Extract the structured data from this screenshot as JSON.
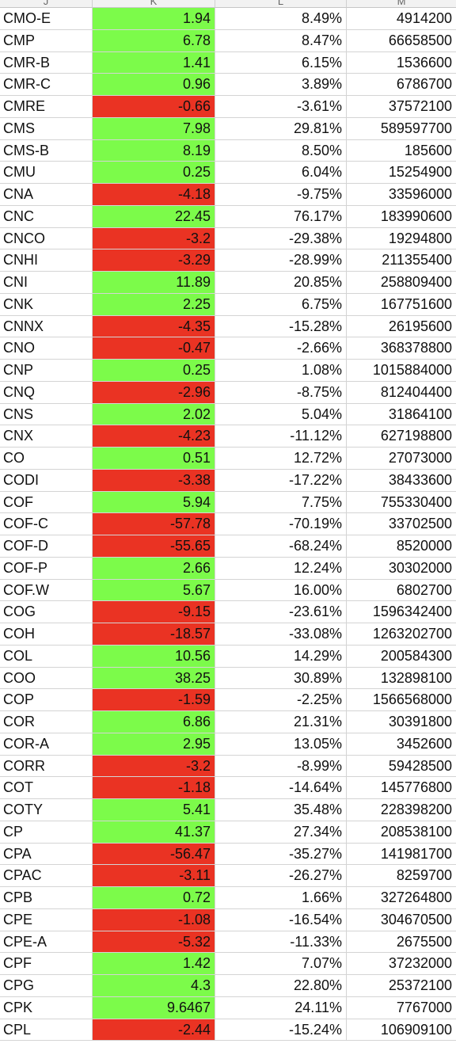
{
  "columns": [
    "J",
    "K",
    "L",
    "M"
  ],
  "colors": {
    "positive_fill": "#7cfb4a",
    "negative_fill": "#ea3323"
  },
  "rows": [
    {
      "symbol": "CMO-E",
      "k": "1.94",
      "l": "8.49%",
      "m": "4914200",
      "k_sign": "pos"
    },
    {
      "symbol": "CMP",
      "k": "6.78",
      "l": "8.47%",
      "m": "66658500",
      "k_sign": "pos"
    },
    {
      "symbol": "CMR-B",
      "k": "1.41",
      "l": "6.15%",
      "m": "1536600",
      "k_sign": "pos"
    },
    {
      "symbol": "CMR-C",
      "k": "0.96",
      "l": "3.89%",
      "m": "6786700",
      "k_sign": "pos"
    },
    {
      "symbol": "CMRE",
      "k": "-0.66",
      "l": "-3.61%",
      "m": "37572100",
      "k_sign": "neg"
    },
    {
      "symbol": "CMS",
      "k": "7.98",
      "l": "29.81%",
      "m": "589597700",
      "k_sign": "pos"
    },
    {
      "symbol": "CMS-B",
      "k": "8.19",
      "l": "8.50%",
      "m": "185600",
      "k_sign": "pos"
    },
    {
      "symbol": "CMU",
      "k": "0.25",
      "l": "6.04%",
      "m": "15254900",
      "k_sign": "pos"
    },
    {
      "symbol": "CNA",
      "k": "-4.18",
      "l": "-9.75%",
      "m": "33596000",
      "k_sign": "neg"
    },
    {
      "symbol": "CNC",
      "k": "22.45",
      "l": "76.17%",
      "m": "183990600",
      "k_sign": "pos"
    },
    {
      "symbol": "CNCO",
      "k": "-3.2",
      "l": "-29.38%",
      "m": "19294800",
      "k_sign": "neg"
    },
    {
      "symbol": "CNHI",
      "k": "-3.29",
      "l": "-28.99%",
      "m": "211355400",
      "k_sign": "neg"
    },
    {
      "symbol": "CNI",
      "k": "11.89",
      "l": "20.85%",
      "m": "258809400",
      "k_sign": "pos"
    },
    {
      "symbol": "CNK",
      "k": "2.25",
      "l": "6.75%",
      "m": "167751600",
      "k_sign": "pos"
    },
    {
      "symbol": "CNNX",
      "k": "-4.35",
      "l": "-15.28%",
      "m": "26195600",
      "k_sign": "neg"
    },
    {
      "symbol": "CNO",
      "k": "-0.47",
      "l": "-2.66%",
      "m": "368378800",
      "k_sign": "neg"
    },
    {
      "symbol": "CNP",
      "k": "0.25",
      "l": "1.08%",
      "m": "1015884000",
      "k_sign": "pos"
    },
    {
      "symbol": "CNQ",
      "k": "-2.96",
      "l": "-8.75%",
      "m": "812404400",
      "k_sign": "neg"
    },
    {
      "symbol": "CNS",
      "k": "2.02",
      "l": "5.04%",
      "m": "31864100",
      "k_sign": "pos"
    },
    {
      "symbol": "CNX",
      "k": "-4.23",
      "l": "-11.12%",
      "m": "627198800",
      "k_sign": "neg"
    },
    {
      "symbol": "CO",
      "k": "0.51",
      "l": "12.72%",
      "m": "27073000",
      "k_sign": "pos"
    },
    {
      "symbol": "CODI",
      "k": "-3.38",
      "l": "-17.22%",
      "m": "38433600",
      "k_sign": "neg"
    },
    {
      "symbol": "COF",
      "k": "5.94",
      "l": "7.75%",
      "m": "755330400",
      "k_sign": "pos"
    },
    {
      "symbol": "COF-C",
      "k": "-57.78",
      "l": "-70.19%",
      "m": "33702500",
      "k_sign": "neg"
    },
    {
      "symbol": "COF-D",
      "k": "-55.65",
      "l": "-68.24%",
      "m": "8520000",
      "k_sign": "neg"
    },
    {
      "symbol": "COF-P",
      "k": "2.66",
      "l": "12.24%",
      "m": "30302000",
      "k_sign": "pos"
    },
    {
      "symbol": "COF.W",
      "k": "5.67",
      "l": "16.00%",
      "m": "6802700",
      "k_sign": "pos"
    },
    {
      "symbol": "COG",
      "k": "-9.15",
      "l": "-23.61%",
      "m": "1596342400",
      "k_sign": "neg"
    },
    {
      "symbol": "COH",
      "k": "-18.57",
      "l": "-33.08%",
      "m": "1263202700",
      "k_sign": "neg"
    },
    {
      "symbol": "COL",
      "k": "10.56",
      "l": "14.29%",
      "m": "200584300",
      "k_sign": "pos"
    },
    {
      "symbol": "COO",
      "k": "38.25",
      "l": "30.89%",
      "m": "132898100",
      "k_sign": "pos"
    },
    {
      "symbol": "COP",
      "k": "-1.59",
      "l": "-2.25%",
      "m": "1566568000",
      "k_sign": "neg"
    },
    {
      "symbol": "COR",
      "k": "6.86",
      "l": "21.31%",
      "m": "30391800",
      "k_sign": "pos"
    },
    {
      "symbol": "COR-A",
      "k": "2.95",
      "l": "13.05%",
      "m": "3452600",
      "k_sign": "pos"
    },
    {
      "symbol": "CORR",
      "k": "-3.2",
      "l": "-8.99%",
      "m": "59428500",
      "k_sign": "neg"
    },
    {
      "symbol": "COT",
      "k": "-1.18",
      "l": "-14.64%",
      "m": "145776800",
      "k_sign": "neg"
    },
    {
      "symbol": "COTY",
      "k": "5.41",
      "l": "35.48%",
      "m": "228398200",
      "k_sign": "pos"
    },
    {
      "symbol": "CP",
      "k": "41.37",
      "l": "27.34%",
      "m": "208538100",
      "k_sign": "pos"
    },
    {
      "symbol": "CPA",
      "k": "-56.47",
      "l": "-35.27%",
      "m": "141981700",
      "k_sign": "neg"
    },
    {
      "symbol": "CPAC",
      "k": "-3.11",
      "l": "-26.27%",
      "m": "8259700",
      "k_sign": "neg"
    },
    {
      "symbol": "CPB",
      "k": "0.72",
      "l": "1.66%",
      "m": "327264800",
      "k_sign": "pos"
    },
    {
      "symbol": "CPE",
      "k": "-1.08",
      "l": "-16.54%",
      "m": "304670500",
      "k_sign": "neg"
    },
    {
      "symbol": "CPE-A",
      "k": "-5.32",
      "l": "-11.33%",
      "m": "2675500",
      "k_sign": "neg"
    },
    {
      "symbol": "CPF",
      "k": "1.42",
      "l": "7.07%",
      "m": "37232000",
      "k_sign": "pos"
    },
    {
      "symbol": "CPG",
      "k": "4.3",
      "l": "22.80%",
      "m": "25372100",
      "k_sign": "pos"
    },
    {
      "symbol": "CPK",
      "k": "9.6467",
      "l": "24.11%",
      "m": "7767000",
      "k_sign": "pos"
    },
    {
      "symbol": "CPL",
      "k": "-2.44",
      "l": "-15.24%",
      "m": "106909100",
      "k_sign": "neg"
    }
  ]
}
